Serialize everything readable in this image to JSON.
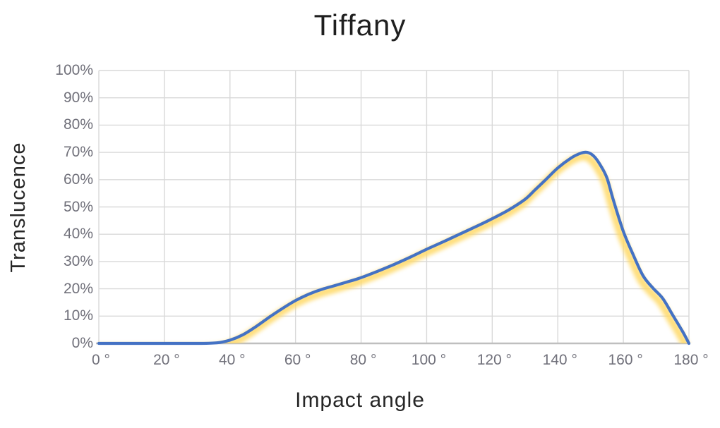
{
  "chart_data": {
    "type": "line",
    "title": "Tiffany",
    "xlabel": "Impact angle",
    "ylabel": "Translucence",
    "xlim": [
      0,
      180
    ],
    "ylim": [
      0,
      100
    ],
    "grid": true,
    "legend": "none",
    "x_tick_step_deg": 20,
    "y_tick_step_pct": 10,
    "x_tick_labels": [
      "0 °",
      "20 °",
      "40 °",
      "60 °",
      "80 °",
      "100 °",
      "120 °",
      "140 °",
      "160 °",
      "180 °"
    ],
    "y_tick_labels": [
      "100%",
      "90%",
      "80%",
      "70%",
      "60%",
      "50%",
      "40%",
      "30%",
      "20%",
      "10%",
      "0%"
    ],
    "series": [
      {
        "name": "Tiffany",
        "line_color": "#4472C4",
        "shadow_color": "#FFD966",
        "points_angle_pct": [
          [
            0,
            0
          ],
          [
            10,
            0
          ],
          [
            20,
            0
          ],
          [
            30,
            0
          ],
          [
            36,
            0.2
          ],
          [
            40,
            1.2
          ],
          [
            44,
            3.2
          ],
          [
            48,
            6.2
          ],
          [
            52,
            9.6
          ],
          [
            56,
            12.8
          ],
          [
            60,
            15.7
          ],
          [
            64,
            18.0
          ],
          [
            68,
            19.8
          ],
          [
            72,
            21.2
          ],
          [
            76,
            22.6
          ],
          [
            80,
            24.1
          ],
          [
            85,
            26.4
          ],
          [
            90,
            28.9
          ],
          [
            95,
            31.6
          ],
          [
            100,
            34.5
          ],
          [
            105,
            37.2
          ],
          [
            110,
            40.0
          ],
          [
            115,
            42.8
          ],
          [
            120,
            45.7
          ],
          [
            125,
            48.9
          ],
          [
            130,
            52.8
          ],
          [
            133,
            56.2
          ],
          [
            136,
            59.6
          ],
          [
            140,
            64.3
          ],
          [
            144,
            67.9
          ],
          [
            147,
            69.7
          ],
          [
            149,
            70.0
          ],
          [
            151,
            68.6
          ],
          [
            153,
            65.3
          ],
          [
            155,
            60.6
          ],
          [
            157,
            52.3
          ],
          [
            160,
            41.0
          ],
          [
            163,
            32.5
          ],
          [
            166,
            24.8
          ],
          [
            169,
            20.3
          ],
          [
            172,
            16.5
          ],
          [
            175,
            10.5
          ],
          [
            178,
            4.5
          ],
          [
            180,
            0
          ]
        ]
      }
    ]
  },
  "colors": {
    "line": "#4472C4",
    "shadow": "#FFD966",
    "gridline": "#D9D9D9",
    "axis_line": "#BFBFBF",
    "tick_text": "#70707a",
    "title_text": "#1f1f1f",
    "axis_title_text": "#262626",
    "background": "#FFFFFF"
  }
}
